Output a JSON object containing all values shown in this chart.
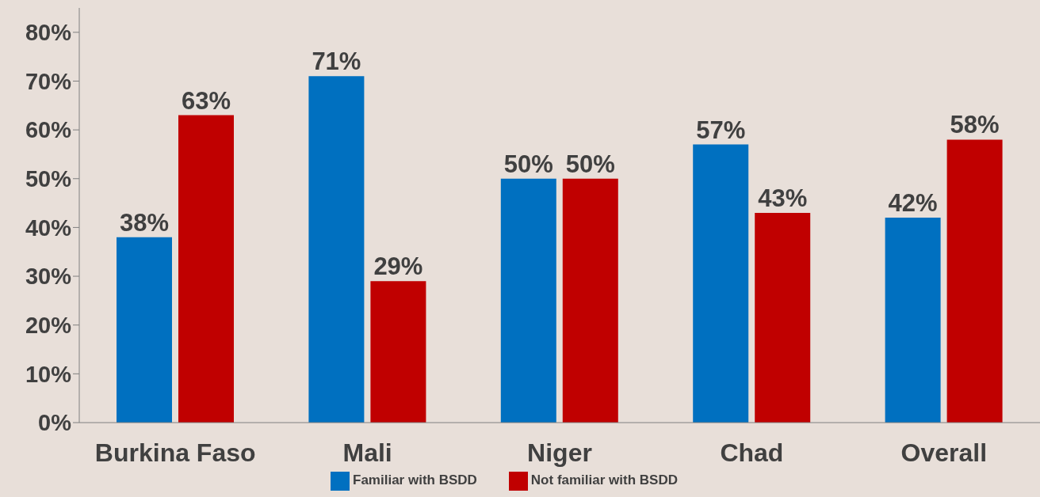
{
  "chart_data": {
    "type": "bar",
    "categories": [
      "Burkina Faso",
      "Mali",
      "Niger",
      "Chad",
      "Overall"
    ],
    "series": [
      {
        "name": "Familiar with BSDD",
        "color": "#0070c0",
        "values": [
          38,
          71,
          50,
          57,
          42
        ],
        "value_labels": [
          "38%",
          "71%",
          "50%",
          "57%",
          "42%"
        ]
      },
      {
        "name": "Not familiar with BSDD",
        "color": "#c00000",
        "values": [
          63,
          29,
          50,
          43,
          58
        ],
        "value_labels": [
          "63%",
          "29%",
          "50%",
          "43%",
          "58%"
        ]
      }
    ],
    "ylim": [
      0,
      85
    ],
    "yticks": [
      {
        "value": 0,
        "label": "0%"
      },
      {
        "value": 10,
        "label": "10%"
      },
      {
        "value": 20,
        "label": "20%"
      },
      {
        "value": 30,
        "label": "30%"
      },
      {
        "value": 40,
        "label": "40%"
      },
      {
        "value": 50,
        "label": "50%"
      },
      {
        "value": 60,
        "label": "60%"
      },
      {
        "value": 70,
        "label": "70%"
      },
      {
        "value": 80,
        "label": "80%"
      }
    ],
    "grid": false,
    "legend": "bottom"
  }
}
